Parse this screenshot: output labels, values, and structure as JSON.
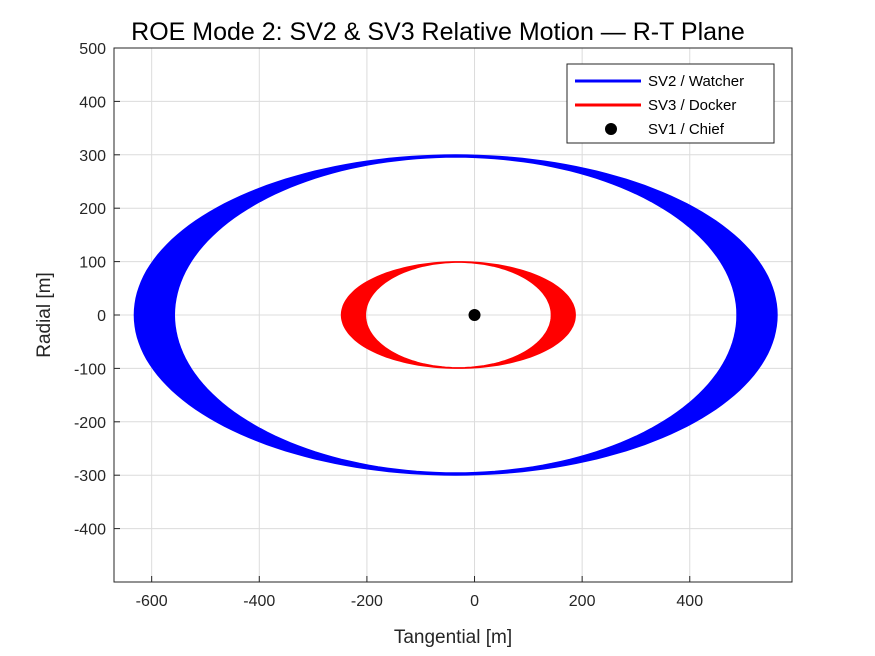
{
  "chart_data": {
    "type": "line",
    "title": "ROE Mode 2: SV2 & SV3 Relative Motion — R-T Plane",
    "xlabel": "Tangential [m]",
    "ylabel": "Radial [m]",
    "xlim": [
      -670,
      590
    ],
    "ylim": [
      -500,
      500
    ],
    "xticks": [
      -600,
      -400,
      -200,
      0,
      200,
      400
    ],
    "yticks": [
      -400,
      -300,
      -200,
      -100,
      0,
      100,
      200,
      300,
      400,
      500
    ],
    "grid": true,
    "legend_position": "top-right",
    "series": [
      {
        "name": "SV2 / Watcher",
        "color": "#0000ff",
        "kind": "drifting-ellipse",
        "center_t": -35,
        "semi_axis_t": 560,
        "semi_axis_r": 300,
        "drift_t": 75
      },
      {
        "name": "SV3 / Docker",
        "color": "#ff0000",
        "kind": "drifting-ellipse",
        "center_t": -30,
        "semi_axis_t": 195,
        "semi_axis_r": 100,
        "drift_t": 45
      },
      {
        "name": "SV1 / Chief",
        "color": "#000000",
        "kind": "point",
        "t": 0,
        "r": 0
      }
    ]
  }
}
